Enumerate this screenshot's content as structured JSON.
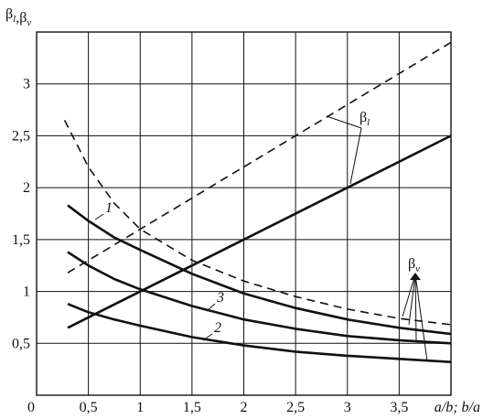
{
  "chart_data": {
    "type": "line",
    "y_label": [
      {
        "base": "β",
        "sub": "l"
      },
      {
        "base": ",β",
        "sub": "v"
      }
    ],
    "x_label": "a/b; b/a",
    "xlim": [
      0,
      4
    ],
    "ylim": [
      0,
      3.5
    ],
    "xticks": [
      0,
      {
        "value": 0.5,
        "label": "0,5"
      },
      1,
      {
        "value": 1.5,
        "label": "1,5"
      },
      2,
      {
        "value": 2.5,
        "label": "2,5"
      },
      3,
      {
        "value": 3.5,
        "label": "3,5"
      }
    ],
    "yticks": [
      {
        "value": 0.5,
        "label": "0,5"
      },
      1,
      {
        "value": 1.5,
        "label": "1,5"
      },
      2,
      {
        "value": 2.5,
        "label": "2,5"
      },
      3
    ],
    "grid": true,
    "color": "#111111",
    "annotations": [
      {
        "base": "β",
        "sub": "l"
      },
      {
        "base": "β",
        "sub": "v"
      }
    ],
    "series": [
      {
        "dashed": true,
        "x": [
          0.3,
          4
        ],
        "values": [
          1.18,
          3.4
        ]
      },
      {
        "dashed": false,
        "x": [
          0.3,
          4
        ],
        "values": [
          0.65,
          2.5
        ]
      },
      {
        "dashed": true,
        "x": [
          0.27,
          0.5,
          0.75,
          1,
          1.5,
          2,
          2.5,
          3,
          3.5,
          4
        ],
        "values": [
          2.65,
          2.2,
          1.85,
          1.6,
          1.3,
          1.1,
          0.95,
          0.83,
          0.74,
          0.68
        ]
      },
      {
        "name": "1",
        "dashed": false,
        "x": [
          0.3,
          0.5,
          0.75,
          1,
          1.5,
          2,
          2.5,
          3,
          3.5,
          4
        ],
        "values": [
          1.83,
          1.68,
          1.52,
          1.4,
          1.17,
          0.98,
          0.84,
          0.73,
          0.65,
          0.59
        ]
      },
      {
        "name": "3",
        "dashed": false,
        "x": [
          0.3,
          0.5,
          0.75,
          1,
          1.5,
          2,
          2.5,
          3,
          3.5,
          4
        ],
        "values": [
          1.38,
          1.25,
          1.12,
          1.02,
          0.86,
          0.73,
          0.64,
          0.57,
          0.53,
          0.5
        ]
      },
      {
        "name": "2",
        "dashed": false,
        "x": [
          0.3,
          0.5,
          0.75,
          1,
          1.5,
          2,
          2.5,
          3,
          3.5,
          4
        ],
        "values": [
          0.88,
          0.8,
          0.73,
          0.67,
          0.56,
          0.48,
          0.42,
          0.38,
          0.35,
          0.32
        ]
      }
    ]
  }
}
